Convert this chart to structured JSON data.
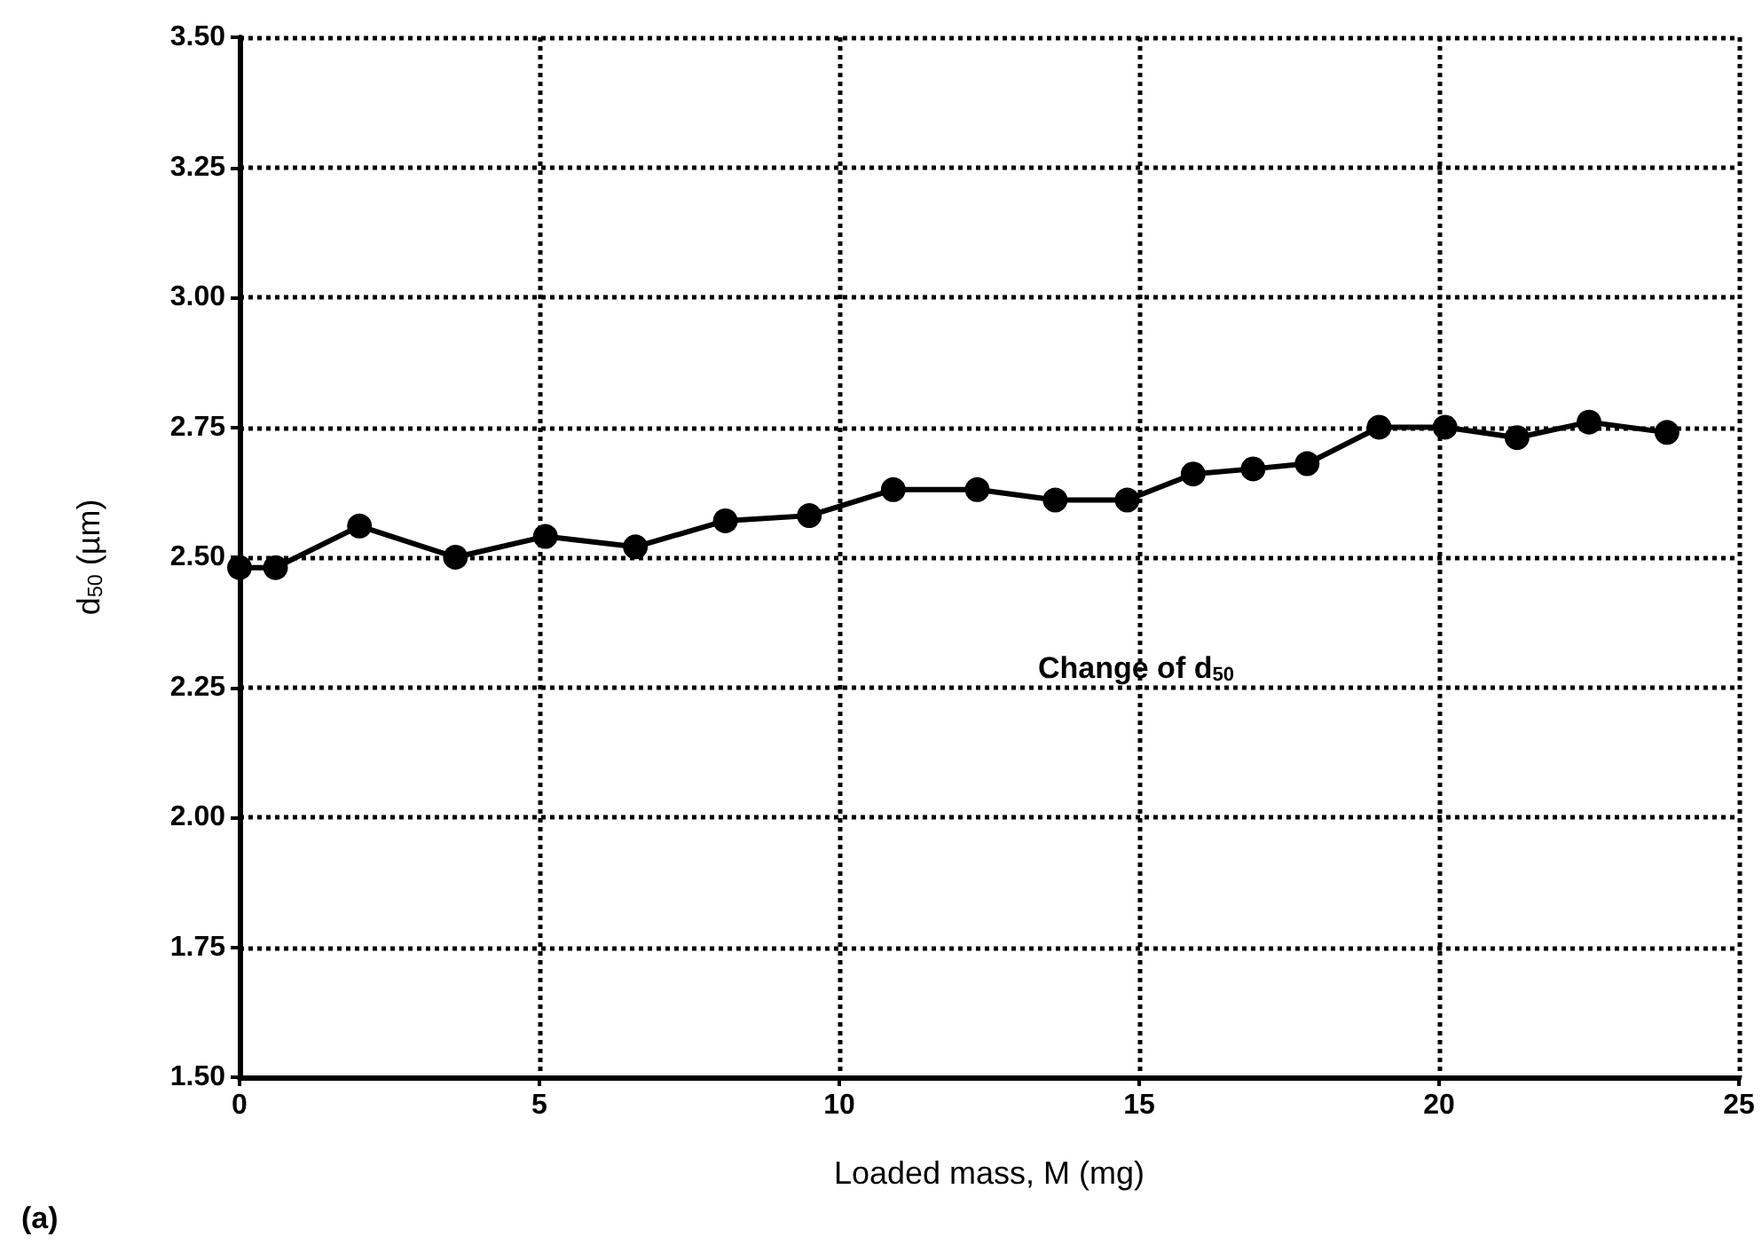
{
  "chart_data": {
    "type": "line",
    "x": [
      0,
      0.6,
      2,
      3.6,
      5.1,
      6.6,
      8.1,
      9.5,
      10.9,
      12.3,
      13.6,
      14.8,
      15.9,
      16.9,
      17.8,
      19.0,
      20.1,
      21.3,
      22.5,
      23.8
    ],
    "series": [
      {
        "color": "#000000",
        "values": [
          2.48,
          2.48,
          2.56,
          2.5,
          2.54,
          2.52,
          2.57,
          2.58,
          2.63,
          2.63,
          2.61,
          2.61,
          2.66,
          2.67,
          2.68,
          2.75,
          2.75,
          2.73,
          2.76,
          2.74
        ]
      }
    ],
    "xlabel": "Loaded mass, M (mg)",
    "ylabel": "d$_{50}$ (µm)",
    "annotations": [
      "Change of d$_{50}$",
      "(a)"
    ],
    "xlim": [
      0,
      25
    ],
    "xticks": [
      0,
      5,
      10,
      15,
      20,
      25
    ],
    "ylim": [
      1.5,
      3.5
    ],
    "yticks": [
      {
        "value": 1.5,
        "label": "1.50"
      },
      {
        "value": 1.75,
        "label": "1.75"
      },
      {
        "value": 2,
        "label": "2.00"
      },
      {
        "value": 2.25,
        "label": "2.25"
      },
      {
        "value": 2.5,
        "label": "2.50"
      },
      {
        "value": 2.75,
        "label": "2.75"
      },
      {
        "value": 3,
        "label": "3.00"
      },
      {
        "value": 3.25,
        "label": "3.25"
      },
      {
        "value": 3.5,
        "label": "3.50"
      }
    ],
    "grid": true,
    "marker": "circle",
    "line_style": "solid"
  }
}
